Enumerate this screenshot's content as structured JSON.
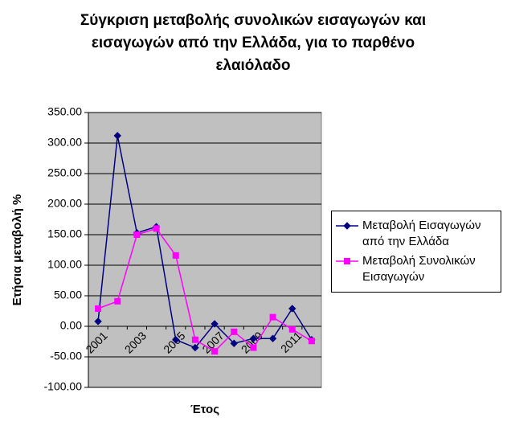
{
  "chart_data": {
    "type": "line",
    "title": [
      "Σύγκριση μεταβολής συνολικών εισαγωγών και",
      "εισαγωγών από την Ελλάδα, για το παρθένο",
      "ελαιόλαδο"
    ],
    "x_label": "Έτος",
    "y_label": "Ετήσια μεταβολή %",
    "categories": [
      "2001",
      null,
      "2003",
      null,
      "2005",
      null,
      "2007",
      null,
      "2009",
      null,
      "2011",
      null
    ],
    "series": [
      {
        "name": "Μεταβολή Εισαγωγών από την Ελλάδα",
        "color": "#000080",
        "marker": "diamond",
        "values": [
          8,
          312,
          153,
          163,
          -22,
          -35,
          4,
          -28,
          -20,
          -20,
          29,
          -22
        ]
      },
      {
        "name": "Μεταβολή Συνολικών Εισαγωγών",
        "color": "#ff00ff",
        "marker": "square",
        "values": [
          29,
          41,
          150,
          160,
          116,
          -22,
          -41,
          -9,
          -35,
          15,
          -5,
          -24
        ]
      }
    ],
    "ylim": [
      -100,
      350
    ],
    "yticks": [
      {
        "value": -100,
        "label": "-100.00"
      },
      {
        "value": -50,
        "label": "-50.00"
      },
      {
        "value": 0,
        "label": "0.00"
      },
      {
        "value": 50,
        "label": "50.00"
      },
      {
        "value": 100,
        "label": "100.00"
      },
      {
        "value": 150,
        "label": "150.00"
      },
      {
        "value": 200,
        "label": "200.00"
      },
      {
        "value": 250,
        "label": "250.00"
      },
      {
        "value": 300,
        "label": "300.00"
      },
      {
        "value": 350,
        "label": "350.00"
      }
    ],
    "grid": true,
    "legend": "right"
  }
}
